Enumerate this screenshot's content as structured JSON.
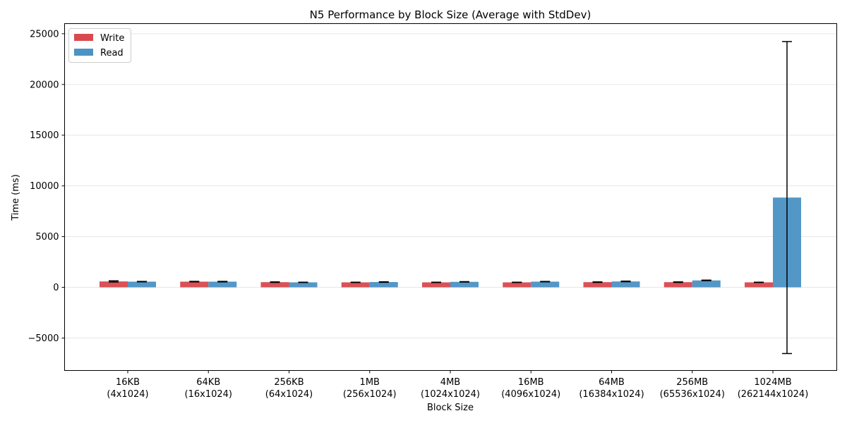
{
  "chart_data": {
    "type": "bar",
    "title": "N5 Performance by Block Size (Average with StdDev)",
    "xlabel": "Block Size",
    "ylabel": "Time (ms)",
    "ylim": [
      -8200,
      26000
    ],
    "yticks": [
      -5000,
      0,
      5000,
      10000,
      15000,
      20000,
      25000
    ],
    "ytick_labels": [
      "−5000",
      "0",
      "5000",
      "10000",
      "15000",
      "20000",
      "25000"
    ],
    "grid": "horizontal",
    "legend_position": "top-left",
    "categories": [
      {
        "line1": "16KB",
        "line2": "(4x1024)"
      },
      {
        "line1": "64KB",
        "line2": "(16x1024)"
      },
      {
        "line1": "256KB",
        "line2": "(64x1024)"
      },
      {
        "line1": "1MB",
        "line2": "(256x1024)"
      },
      {
        "line1": "4MB",
        "line2": "(1024x1024)"
      },
      {
        "line1": "16MB",
        "line2": "(4096x1024)"
      },
      {
        "line1": "64MB",
        "line2": "(16384x1024)"
      },
      {
        "line1": "256MB",
        "line2": "(65536x1024)"
      },
      {
        "line1": "1024MB",
        "line2": "(262144x1024)"
      }
    ],
    "series": [
      {
        "name": "Write",
        "color": "#d94a4f",
        "values": [
          580,
          560,
          510,
          490,
          490,
          490,
          510,
          510,
          490
        ],
        "std": [
          60,
          25,
          25,
          15,
          15,
          15,
          25,
          25,
          15
        ]
      },
      {
        "name": "Read",
        "color": "#4c93c5",
        "values": [
          560,
          560,
          490,
          520,
          540,
          560,
          580,
          680,
          8850
        ],
        "std": [
          20,
          25,
          15,
          25,
          20,
          20,
          30,
          30,
          15380
        ]
      }
    ]
  }
}
